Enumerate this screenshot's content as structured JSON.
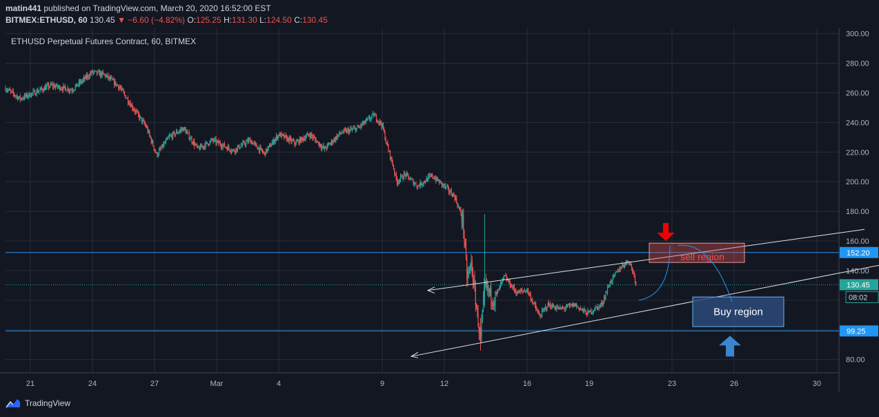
{
  "header": {
    "user": "matin441",
    "published_text": " published on TradingView.com, March 20, 2020 16:52:00 EST",
    "symbol": "BITMEX:ETHUSD, 60",
    "price": "130.45",
    "change": "▼ −6.60 (−4.82%)",
    "o_label": "O:",
    "o": "125.25",
    "h_label": "H:",
    "h": "131.30",
    "l_label": "L:",
    "l": "124.50",
    "c_label": "C:",
    "c": "130.45"
  },
  "footer": {
    "brand": "TradingView"
  },
  "colors": {
    "background": "#131722",
    "grid": "#2a2e39",
    "up": "#26a69a",
    "down": "#ef5350",
    "level_line": "#2196f3",
    "sell_box": "#ef5350",
    "buy_box": "#2a4a7a",
    "arrow_red": "#f00000",
    "arrow_blue": "#3a86d0"
  },
  "chart_data": {
    "type": "candlestick",
    "title": "ETHUSD Perpetual Futures Contract, 60, BITMEX",
    "timeframe": "60",
    "exchange": "BITMEX",
    "y_axis": {
      "ticks": [
        80,
        100,
        120,
        140,
        160,
        180,
        200,
        220,
        240,
        260,
        280,
        300
      ],
      "ylim": [
        71,
        304
      ],
      "labels": [
        "80.00",
        "100.00",
        "120.00",
        "140.00",
        "160.00",
        "180.00",
        "200.00",
        "220.00",
        "240.00",
        "260.00",
        "280.00",
        "300.00"
      ]
    },
    "x_axis": {
      "labels": [
        "21",
        "24",
        "27",
        "Mar",
        "4",
        "9",
        "12",
        "16",
        "19",
        "23",
        "26",
        "30"
      ],
      "label_days": [
        -9,
        -6,
        -3,
        0,
        3,
        8,
        11,
        15,
        18,
        22,
        25,
        29
      ],
      "xlim": [
        -10.2,
        1.0,
        30.2
      ]
    },
    "price_anchors": [
      {
        "d": -10.2,
        "p": 263
      },
      {
        "d": -9.5,
        "p": 256
      },
      {
        "d": -8,
        "p": 265
      },
      {
        "d": -7,
        "p": 262
      },
      {
        "d": -6,
        "p": 274
      },
      {
        "d": -5.4,
        "p": 272
      },
      {
        "d": -4.7,
        "p": 264
      },
      {
        "d": -4.1,
        "p": 251
      },
      {
        "d": -3.4,
        "p": 237
      },
      {
        "d": -2.9,
        "p": 218
      },
      {
        "d": -2.3,
        "p": 230
      },
      {
        "d": -1.6,
        "p": 236
      },
      {
        "d": -0.9,
        "p": 222
      },
      {
        "d": -0.2,
        "p": 228
      },
      {
        "d": 0.8,
        "p": 221
      },
      {
        "d": 1.6,
        "p": 228
      },
      {
        "d": 2.3,
        "p": 219
      },
      {
        "d": 3.0,
        "p": 232
      },
      {
        "d": 3.8,
        "p": 226
      },
      {
        "d": 4.5,
        "p": 232
      },
      {
        "d": 5.2,
        "p": 222
      },
      {
        "d": 6.0,
        "p": 233
      },
      {
        "d": 6.8,
        "p": 236
      },
      {
        "d": 7.6,
        "p": 245
      },
      {
        "d": 8.0,
        "p": 238
      },
      {
        "d": 8.2,
        "p": 226
      },
      {
        "d": 8.5,
        "p": 212
      },
      {
        "d": 8.7,
        "p": 200
      },
      {
        "d": 9.1,
        "p": 205
      },
      {
        "d": 9.7,
        "p": 197
      },
      {
        "d": 10.4,
        "p": 204
      },
      {
        "d": 11.0,
        "p": 197
      },
      {
        "d": 11.5,
        "p": 190
      },
      {
        "d": 11.9,
        "p": 174
      },
      {
        "d": 12.1,
        "p": 134
      },
      {
        "d": 12.3,
        "p": 145
      },
      {
        "d": 12.5,
        "p": 121
      },
      {
        "d": 12.75,
        "p": 92
      },
      {
        "d": 12.95,
        "p": 130
      },
      {
        "d": 13.4,
        "p": 120
      },
      {
        "d": 13.9,
        "p": 136
      },
      {
        "d": 14.5,
        "p": 125
      },
      {
        "d": 15.0,
        "p": 127
      },
      {
        "d": 15.3,
        "p": 118
      },
      {
        "d": 15.6,
        "p": 109
      },
      {
        "d": 16.0,
        "p": 117
      },
      {
        "d": 16.6,
        "p": 114
      },
      {
        "d": 17.3,
        "p": 117
      },
      {
        "d": 17.9,
        "p": 111
      },
      {
        "d": 18.6,
        "p": 117
      },
      {
        "d": 19.0,
        "p": 132
      },
      {
        "d": 19.5,
        "p": 142
      },
      {
        "d": 19.9,
        "p": 147
      },
      {
        "d": 20.1,
        "p": 140
      },
      {
        "d": 20.3,
        "p": 130
      }
    ],
    "last_price": 130.45,
    "levels": [
      {
        "price": 152.2,
        "label": "152.20"
      },
      {
        "price": 99.25,
        "label": "99.25"
      }
    ],
    "current_price_label": "130.45",
    "countdown_label": "08:02",
    "annotations": {
      "sell_box": {
        "label": "sell region",
        "d0": 20.9,
        "d1": 25.5,
        "p0": 145.5,
        "p1": 158.5
      },
      "buy_box": {
        "label": "Buy region",
        "d0": 23.0,
        "d1": 27.4,
        "p0": 102.2,
        "p1": 122.2
      },
      "upper_line": {
        "d0": 10.2,
        "p0": 126.6,
        "d1": 31.3,
        "p1": 167.8
      },
      "lower_line": {
        "d0": 9.4,
        "p0": 82.1,
        "d1": 32.5,
        "p1": 144.9
      },
      "red_arrow_at": {
        "d": 21.7,
        "p": 160
      },
      "blue_arrow_at": {
        "d": 24.8,
        "p": 96
      },
      "curve_down": {
        "d0": 20.4,
        "p0": 120,
        "d1": 21.9,
        "p1": 157
      },
      "curve_up": {
        "d0": 22.3,
        "p0": 157,
        "d1": 24.9,
        "p1": 119
      }
    }
  }
}
